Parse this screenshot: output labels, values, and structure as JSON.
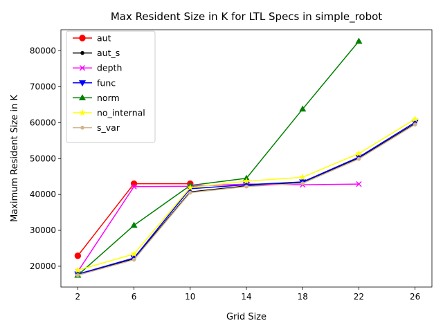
{
  "chart_data": {
    "type": "line",
    "title": "Max Resident Size in K for LTL Specs in simple_robot",
    "xlabel": "Grid Size",
    "ylabel": "Maximum Resident Size in K",
    "x_ticks": [
      2,
      6,
      10,
      14,
      18,
      22,
      26
    ],
    "y_ticks": [
      20000,
      30000,
      40000,
      50000,
      60000,
      70000,
      80000
    ],
    "xlim": [
      0.8,
      27.2
    ],
    "ylim": [
      14200,
      85900
    ],
    "grid": false,
    "legend_position": "upper-left",
    "series": [
      {
        "name": "aut",
        "color": "#ff0000",
        "marker": "circle",
        "x": [
          2,
          6,
          10
        ],
        "values": [
          22900,
          43000,
          43000
        ]
      },
      {
        "name": "aut_s",
        "color": "#000000",
        "marker": "point",
        "x": [
          2,
          6,
          10,
          14,
          18,
          22,
          26
        ],
        "values": [
          17600,
          22100,
          40700,
          42400,
          43300,
          50100,
          59700
        ]
      },
      {
        "name": "depth",
        "color": "#ff00ff",
        "marker": "x",
        "x": [
          2,
          6,
          10,
          14,
          18,
          22
        ],
        "values": [
          18500,
          42200,
          42300,
          42900,
          42700,
          42900
        ]
      },
      {
        "name": "func",
        "color": "#0000ff",
        "marker": "triangle-down",
        "x": [
          2,
          6,
          10,
          14,
          18,
          22,
          26
        ],
        "values": [
          17800,
          22300,
          41600,
          42700,
          43500,
          50400,
          60100
        ]
      },
      {
        "name": "norm",
        "color": "#008000",
        "marker": "triangle-up",
        "x": [
          2,
          6,
          10,
          14,
          18,
          22
        ],
        "values": [
          17500,
          31400,
          42500,
          44500,
          63800,
          82700
        ]
      },
      {
        "name": "no_internal",
        "color": "#ffff00",
        "marker": "star",
        "x": [
          2,
          6,
          10,
          14,
          18,
          22,
          26
        ],
        "values": [
          18900,
          23400,
          41900,
          43700,
          44800,
          51400,
          61000
        ]
      },
      {
        "name": "s_var",
        "color": "#d2b48c",
        "marker": "point",
        "x": [
          2,
          6,
          10,
          14,
          18,
          22,
          26
        ],
        "values": [
          17500,
          21800,
          40500,
          42200,
          43100,
          49900,
          59500
        ]
      }
    ]
  }
}
